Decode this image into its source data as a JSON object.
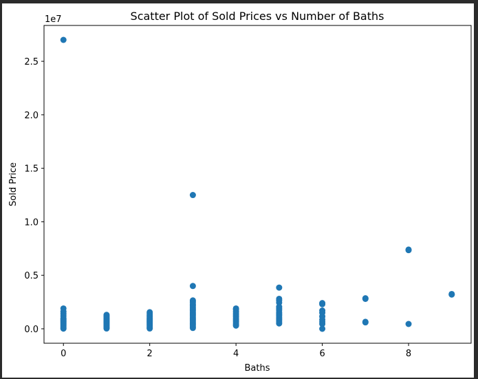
{
  "chart_data": {
    "type": "scatter",
    "title": "Scatter Plot of Sold Prices vs Number of Baths",
    "xlabel": "Baths",
    "ylabel": "Sold Price",
    "y_offset_label": "1e7",
    "xlim": [
      -0.45,
      9.45
    ],
    "ylim": [
      -1350000,
      28350000
    ],
    "x_ticks": [
      0,
      2,
      4,
      6,
      8
    ],
    "x_tick_labels": [
      "0",
      "2",
      "4",
      "6",
      "8"
    ],
    "y_ticks": [
      0,
      5000000,
      10000000,
      15000000,
      20000000,
      25000000
    ],
    "y_tick_labels": [
      "0.0",
      "0.5",
      "1.0",
      "1.5",
      "2.0",
      "2.5"
    ],
    "grid": false,
    "marker_color": "#1f77b4",
    "series": [
      {
        "points": [
          [
            0,
            27000000
          ],
          [
            0,
            1900000
          ],
          [
            0,
            1600000
          ],
          [
            0,
            1400000
          ],
          [
            0,
            1200000
          ],
          [
            0,
            1000000
          ],
          [
            0,
            900000
          ],
          [
            0,
            800000
          ],
          [
            0,
            700000
          ],
          [
            0,
            600000
          ],
          [
            0,
            500000
          ],
          [
            0,
            400000
          ],
          [
            0,
            300000
          ],
          [
            0,
            200000
          ],
          [
            0,
            100000
          ],
          [
            0,
            20000
          ],
          [
            1,
            1300000
          ],
          [
            1,
            1200000
          ],
          [
            1,
            1100000
          ],
          [
            1,
            1000000
          ],
          [
            1,
            900000
          ],
          [
            1,
            800000
          ],
          [
            1,
            700000
          ],
          [
            1,
            600000
          ],
          [
            1,
            500000
          ],
          [
            1,
            400000
          ],
          [
            1,
            300000
          ],
          [
            1,
            200000
          ],
          [
            1,
            100000
          ],
          [
            1,
            30000
          ],
          [
            2,
            1550000
          ],
          [
            2,
            1450000
          ],
          [
            2,
            1300000
          ],
          [
            2,
            1200000
          ],
          [
            2,
            1100000
          ],
          [
            2,
            1000000
          ],
          [
            2,
            900000
          ],
          [
            2,
            800000
          ],
          [
            2,
            700000
          ],
          [
            2,
            600000
          ],
          [
            2,
            500000
          ],
          [
            2,
            400000
          ],
          [
            2,
            300000
          ],
          [
            2,
            200000
          ],
          [
            2,
            100000
          ],
          [
            2,
            30000
          ],
          [
            3,
            12500000
          ],
          [
            3,
            4000000
          ],
          [
            3,
            2650000
          ],
          [
            3,
            2500000
          ],
          [
            3,
            2300000
          ],
          [
            3,
            2150000
          ],
          [
            3,
            2000000
          ],
          [
            3,
            1850000
          ],
          [
            3,
            1700000
          ],
          [
            3,
            1550000
          ],
          [
            3,
            1400000
          ],
          [
            3,
            1250000
          ],
          [
            3,
            1100000
          ],
          [
            3,
            950000
          ],
          [
            3,
            800000
          ],
          [
            3,
            650000
          ],
          [
            3,
            500000
          ],
          [
            3,
            350000
          ],
          [
            3,
            200000
          ],
          [
            3,
            80000
          ],
          [
            4,
            1900000
          ],
          [
            4,
            1800000
          ],
          [
            4,
            1600000
          ],
          [
            4,
            1450000
          ],
          [
            4,
            1300000
          ],
          [
            4,
            1150000
          ],
          [
            4,
            1000000
          ],
          [
            4,
            850000
          ],
          [
            4,
            700000
          ],
          [
            4,
            550000
          ],
          [
            4,
            400000
          ],
          [
            4,
            300000
          ],
          [
            5,
            3850000
          ],
          [
            5,
            2800000
          ],
          [
            5,
            2650000
          ],
          [
            5,
            2450000
          ],
          [
            5,
            2050000
          ],
          [
            5,
            1900000
          ],
          [
            5,
            1750000
          ],
          [
            5,
            1550000
          ],
          [
            5,
            1400000
          ],
          [
            5,
            1250000
          ],
          [
            5,
            1100000
          ],
          [
            5,
            950000
          ],
          [
            5,
            800000
          ],
          [
            5,
            650000
          ],
          [
            5,
            500000
          ],
          [
            6,
            2400000
          ],
          [
            6,
            2300000
          ],
          [
            6,
            1700000
          ],
          [
            6,
            1500000
          ],
          [
            6,
            1150000
          ],
          [
            6,
            850000
          ],
          [
            6,
            650000
          ],
          [
            6,
            450000
          ],
          [
            6,
            0
          ],
          [
            7,
            2850000
          ],
          [
            7,
            2800000
          ],
          [
            7,
            650000
          ],
          [
            7,
            600000
          ],
          [
            8,
            7400000
          ],
          [
            8,
            7350000
          ],
          [
            8,
            450000
          ],
          [
            9,
            3250000
          ],
          [
            9,
            3200000
          ]
        ]
      }
    ]
  }
}
